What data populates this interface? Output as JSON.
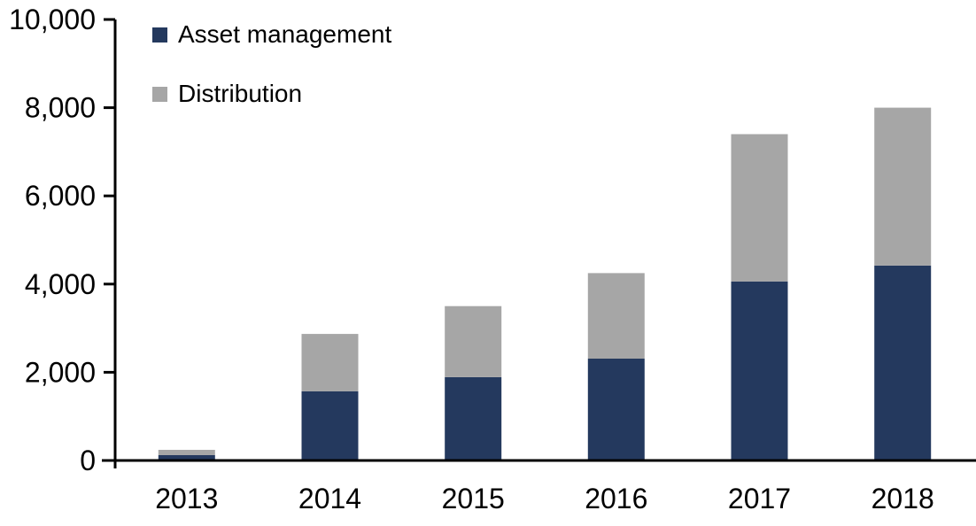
{
  "chart_data": {
    "type": "bar",
    "stacked": true,
    "title": "",
    "xlabel": "",
    "ylabel": "",
    "categories": [
      "2013",
      "2014",
      "2015",
      "2016",
      "2017",
      "2018"
    ],
    "series": [
      {
        "name": "Asset management",
        "color": "#24395e",
        "values": [
          120,
          1570,
          1890,
          2310,
          4060,
          4420
        ]
      },
      {
        "name": "Distribution",
        "color": "#a6a6a6",
        "values": [
          120,
          1300,
          1610,
          1940,
          3340,
          3580
        ]
      }
    ],
    "ylim": [
      0,
      10000
    ],
    "ytick_step": 2000,
    "ytick_labels": [
      "0",
      "2,000",
      "4,000",
      "6,000",
      "8,000",
      "10,000"
    ],
    "grid": false,
    "legend_position": "top-left",
    "axis_color": "#000000",
    "text_color": "#000000"
  }
}
